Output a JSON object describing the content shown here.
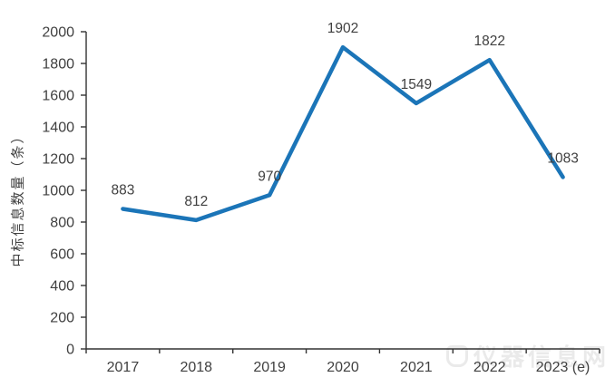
{
  "chart_data": {
    "type": "line",
    "categories": [
      "2017",
      "2018",
      "2019",
      "2020",
      "2021",
      "2022",
      "2023 (e)"
    ],
    "values": [
      883,
      812,
      970,
      1902,
      1549,
      1822,
      1083
    ],
    "data_labels": [
      "883",
      "812",
      "970",
      "1902",
      "1549",
      "1822",
      "1083"
    ],
    "title": "",
    "xlabel": "",
    "ylabel": "中标信息数量（条）",
    "ylim": [
      0,
      2000
    ],
    "yticks": [
      0,
      200,
      400,
      600,
      800,
      1000,
      1200,
      1400,
      1600,
      1800,
      2000
    ],
    "grid": false,
    "legend": "none",
    "line_color": "#1B75B8",
    "axis_color": "#333333",
    "text_color": "#404040"
  },
  "watermark": {
    "text": "仪器信息网"
  }
}
